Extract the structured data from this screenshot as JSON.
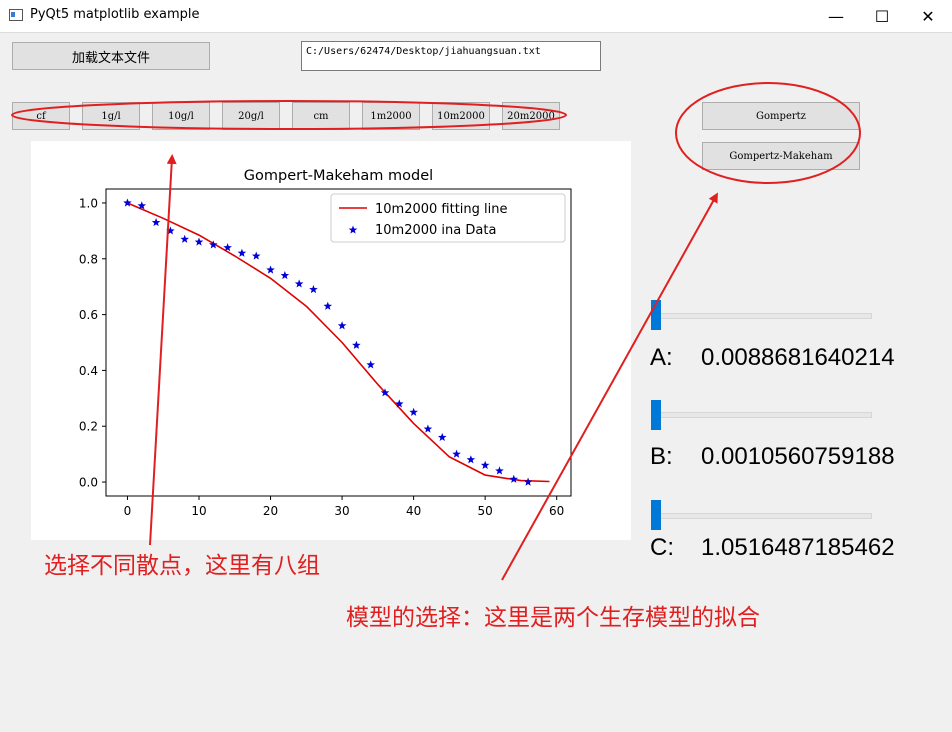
{
  "window": {
    "title": "PyQt5 matplotlib example",
    "minimize_glyph": "—",
    "maximize_glyph": "☐",
    "close_glyph": "✕"
  },
  "load_button": "加载文本文件",
  "file_path": "C:/Users/62474/Desktop/jiahuangsuan.txt",
  "dataset_buttons": [
    "cf",
    "1g/l",
    "10g/l",
    "20g/l",
    "cm",
    "1m2000",
    "10m2000",
    "20m2000"
  ],
  "model_buttons": [
    "Gompertz",
    "Gompertz-Makeham"
  ],
  "params": [
    {
      "label": "A:",
      "value": "0.0088681640214",
      "level": 0.0
    },
    {
      "label": "B:",
      "value": "0.0010560759188",
      "level": 0.0
    },
    {
      "label": "C:",
      "value": "1.0516487185462",
      "level": 0.0
    }
  ],
  "annotations": {
    "left": "选择不同散点，这里有八组",
    "right": "模型的选择：这里是两个生存模型的拟合"
  },
  "colors": {
    "annotation": "#e02020",
    "fit_line": "#e00000",
    "scatter": "#0000d8",
    "slider": "#0078d7"
  },
  "chart_data": {
    "type": "scatter",
    "title": "Gompert-Makeham model",
    "xlabel": "",
    "ylabel": "",
    "xlim": [
      -3,
      62
    ],
    "ylim": [
      -0.05,
      1.05
    ],
    "x_ticks": [
      "0",
      "10",
      "20",
      "30",
      "40",
      "50",
      "60"
    ],
    "y_ticks": [
      "0.0",
      "0.2",
      "0.4",
      "0.6",
      "0.8",
      "1.0"
    ],
    "legend_position": "top-right",
    "series": [
      {
        "name": "10m2000 fitting line",
        "kind": "line",
        "x": [
          0,
          5,
          10,
          15,
          20,
          25,
          30,
          35,
          40,
          45,
          50,
          55,
          59
        ],
        "y": [
          1.0,
          0.945,
          0.885,
          0.81,
          0.73,
          0.63,
          0.5,
          0.35,
          0.21,
          0.09,
          0.025,
          0.005,
          0.002
        ]
      },
      {
        "name": "10m2000 ina Data",
        "kind": "scatter",
        "x": [
          0,
          2,
          4,
          6,
          8,
          10,
          12,
          14,
          16,
          18,
          20,
          22,
          24,
          26,
          28,
          30,
          32,
          34,
          36,
          38,
          40,
          42,
          44,
          46,
          48,
          50,
          52,
          54,
          56
        ],
        "y": [
          1.0,
          0.99,
          0.93,
          0.9,
          0.87,
          0.86,
          0.85,
          0.84,
          0.82,
          0.81,
          0.76,
          0.74,
          0.71,
          0.69,
          0.63,
          0.56,
          0.49,
          0.42,
          0.32,
          0.28,
          0.25,
          0.19,
          0.16,
          0.1,
          0.08,
          0.06,
          0.04,
          0.01,
          0.0
        ]
      }
    ]
  }
}
